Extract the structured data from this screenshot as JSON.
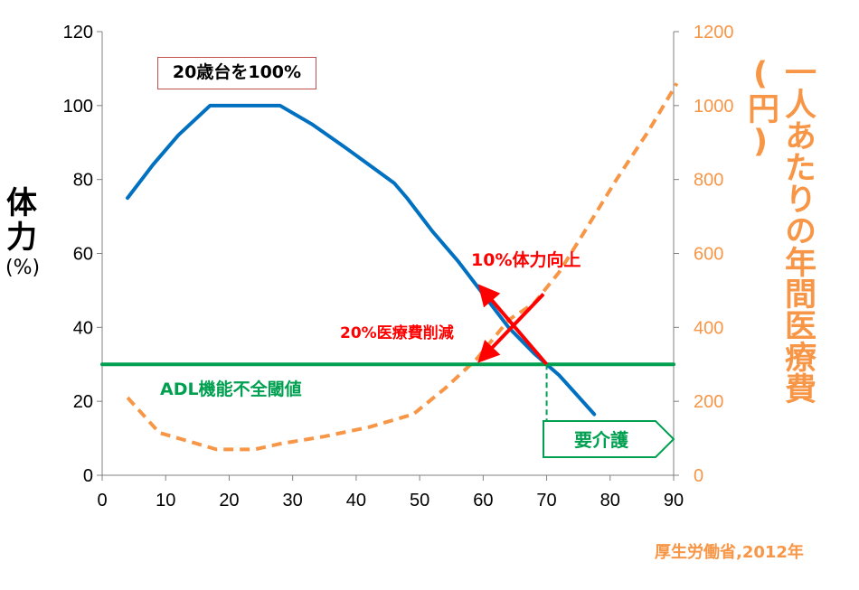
{
  "chart_data": {
    "type": "line",
    "title": "",
    "x": [
      0,
      10,
      20,
      30,
      40,
      50,
      60,
      70,
      80,
      90
    ],
    "xlim": [
      0,
      90
    ],
    "xticks": [
      "0",
      "10",
      "20",
      "30",
      "40",
      "50",
      "60",
      "70",
      "80",
      "90"
    ],
    "y_left": {
      "label": "体力",
      "unit": "(%)",
      "lim": [
        0,
        120
      ],
      "ticks": [
        "0",
        "20",
        "40",
        "60",
        "80",
        "100",
        "120"
      ]
    },
    "y_right": {
      "label": "一人あたりの年間医療費",
      "unit": "(円)",
      "lim": [
        0,
        1200
      ],
      "ticks": [
        "0",
        "200",
        "400",
        "600",
        "800",
        "1000",
        "1200"
      ]
    },
    "grid": false,
    "series": [
      {
        "axis": "left",
        "color": "#0070C0",
        "style": "solid",
        "points": [
          [
            4,
            75
          ],
          [
            8,
            84
          ],
          [
            12,
            92
          ],
          [
            17,
            100
          ],
          [
            28,
            100
          ],
          [
            33,
            95
          ],
          [
            38,
            89
          ],
          [
            42,
            84
          ],
          [
            46,
            79
          ],
          [
            48,
            75
          ],
          [
            52,
            66
          ],
          [
            56,
            58
          ],
          [
            60,
            49
          ],
          [
            64,
            40
          ],
          [
            68,
            33
          ],
          [
            72,
            27
          ],
          [
            77.5,
            16.5
          ]
        ]
      },
      {
        "axis": "right",
        "color": "#F79646",
        "style": "dashed",
        "points": [
          [
            4,
            210
          ],
          [
            9,
            115
          ],
          [
            13,
            95
          ],
          [
            18,
            70
          ],
          [
            24,
            70
          ],
          [
            28,
            85
          ],
          [
            35,
            105
          ],
          [
            42,
            130
          ],
          [
            49,
            165
          ],
          [
            54,
            235
          ],
          [
            59,
            315
          ],
          [
            64,
            420
          ],
          [
            68,
            465
          ],
          [
            72,
            550
          ],
          [
            76,
            660
          ],
          [
            81,
            800
          ],
          [
            86,
            930
          ],
          [
            90.5,
            1060
          ]
        ]
      },
      {
        "axis": "left",
        "color": "#00A050",
        "style": "solid",
        "points": [
          [
            0,
            30
          ],
          [
            90,
            30
          ]
        ]
      }
    ],
    "annotations": {
      "box_text": "20歳台を100%",
      "fitness_text": "10%体力向上",
      "cost_text": "20%医療費削減",
      "adl_text": "ADL機能不全閾値",
      "care_text": "要介護",
      "source": "厚生労働省,2012年"
    }
  }
}
